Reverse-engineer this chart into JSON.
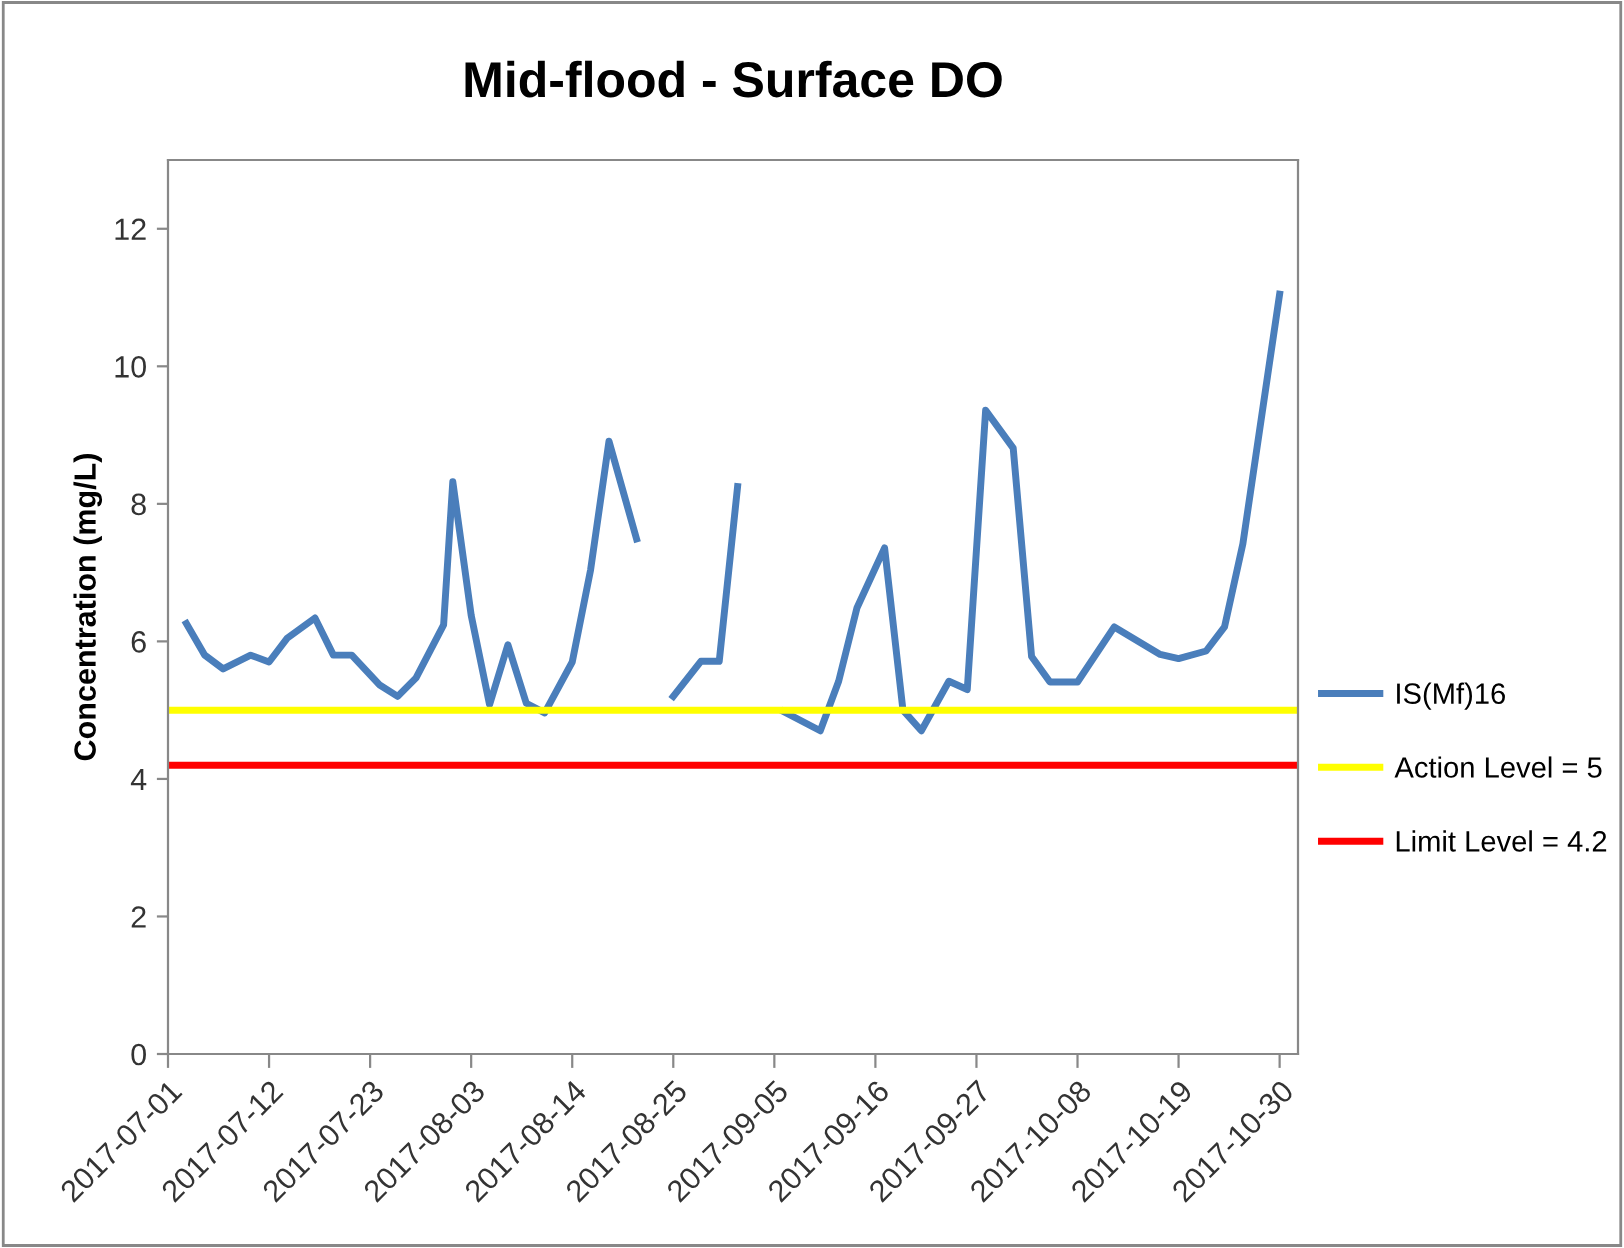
{
  "chart_data": {
    "type": "line",
    "title": "Mid-flood - Surface DO",
    "ylabel": "Concentration (mg/L)",
    "x": [
      "2017-07-03",
      "2017-07-05",
      "2017-07-07",
      "2017-07-10",
      "2017-07-12",
      "2017-07-14",
      "2017-07-17",
      "2017-07-19",
      "2017-07-21",
      "2017-07-24",
      "2017-07-26",
      "2017-07-28",
      "2017-07-31",
      "2017-08-01",
      "2017-08-03",
      "2017-08-05",
      "2017-08-07",
      "2017-08-09",
      "2017-08-11",
      "2017-08-14",
      "2017-08-16",
      "2017-08-18",
      "2017-08-21",
      "2017-08-23",
      "2017-08-25",
      "2017-08-28",
      "2017-08-30",
      "2017-09-01",
      "2017-09-03",
      "2017-09-06",
      "2017-09-10",
      "2017-09-12",
      "2017-09-14",
      "2017-09-17",
      "2017-09-19",
      "2017-09-21",
      "2017-09-24",
      "2017-09-26",
      "2017-09-28",
      "2017-10-01",
      "2017-10-03",
      "2017-10-05",
      "2017-10-08",
      "2017-10-12",
      "2017-10-17",
      "2017-10-19",
      "2017-10-22",
      "2017-10-24",
      "2017-10-26",
      "2017-10-30"
    ],
    "series": [
      {
        "name": "IS(Mf)16",
        "color": "#4a7ebb",
        "values": [
          6.26,
          5.8,
          5.6,
          5.8,
          5.7,
          6.05,
          6.34,
          5.8,
          5.8,
          5.37,
          5.2,
          5.47,
          6.24,
          8.32,
          6.38,
          5.08,
          5.95,
          5.1,
          4.96,
          5.7,
          7.04,
          8.91,
          7.49,
          null,
          5.2,
          5.71,
          5.71,
          8.25,
          null,
          4.98,
          4.7,
          5.42,
          6.49,
          7.36,
          5.0,
          4.7,
          5.42,
          5.3,
          9.36,
          8.81,
          5.78,
          5.41,
          5.41,
          6.21,
          5.81,
          5.75,
          5.86,
          6.21,
          7.42,
          11.05
        ]
      }
    ],
    "ref_lines": [
      {
        "axis": "y",
        "value": 5,
        "label": "Action Level = 5",
        "color": "#ffff00"
      },
      {
        "axis": "y",
        "value": 4.2,
        "label": "Limit Level = 4.2",
        "color": "#ff0000"
      }
    ],
    "xlim": [
      "2017-07-01",
      "2017-11-01"
    ],
    "xticks": [
      {
        "value": "2017-07-01",
        "label": "2017-07-01"
      },
      {
        "value": "2017-07-12",
        "label": "2017-07-12"
      },
      {
        "value": "2017-07-23",
        "label": "2017-07-23"
      },
      {
        "value": "2017-08-03",
        "label": "2017-08-03"
      },
      {
        "value": "2017-08-14",
        "label": "2017-08-14"
      },
      {
        "value": "2017-08-25",
        "label": "2017-08-25"
      },
      {
        "value": "2017-09-05",
        "label": "2017-09-05"
      },
      {
        "value": "2017-09-16",
        "label": "2017-09-16"
      },
      {
        "value": "2017-09-27",
        "label": "2017-09-27"
      },
      {
        "value": "2017-10-08",
        "label": "2017-10-08"
      },
      {
        "value": "2017-10-19",
        "label": "2017-10-19"
      },
      {
        "value": "2017-10-30",
        "label": "2017-10-30"
      }
    ],
    "ylim": [
      0,
      13
    ],
    "yticks": [
      0,
      2,
      4,
      6,
      8,
      10,
      12
    ],
    "grid": false,
    "legend": "right",
    "marker": "none",
    "line_style": "solid"
  }
}
